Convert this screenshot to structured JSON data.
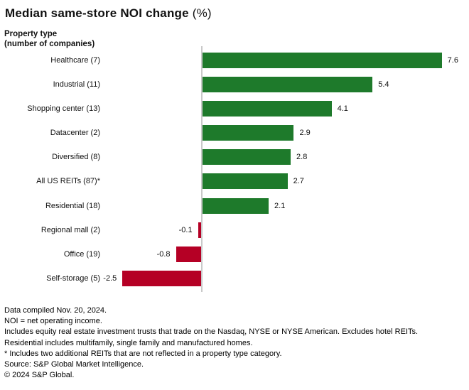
{
  "title": {
    "main": "Median same-store NOI change",
    "suffix": " (%)"
  },
  "axis_group_label": {
    "line1": "Property type",
    "line2": "(number of companies)"
  },
  "chart_data": {
    "type": "bar",
    "orientation": "horizontal",
    "title": "Median same-store NOI change (%)",
    "ylabel": "Property type (number of companies)",
    "xlabel": "",
    "categories": [
      "Healthcare (7)",
      "Industrial (11)",
      "Shopping center (13)",
      "Datacenter (2)",
      "Diversified (8)",
      "All US REITs (87)*",
      "Residential (18)",
      "Regional mall (2)",
      "Office (19)",
      "Self-storage (5)"
    ],
    "values": [
      7.6,
      5.4,
      4.1,
      2.9,
      2.8,
      2.7,
      2.1,
      -0.1,
      -0.8,
      -2.5
    ],
    "value_labels": [
      "7.6",
      "5.4",
      "4.1",
      "2.9",
      "2.8",
      "2.7",
      "2.1",
      "-0.1",
      "-0.8",
      "-2.5"
    ],
    "xlim": [
      -2.6,
      8.4
    ],
    "gridlines": false,
    "legend": false,
    "positive_color": "#1e7a2b",
    "negative_color": "#b50025",
    "axis_line_color": "#c9c9c9"
  },
  "footnotes": [
    "Data compiled Nov. 20, 2024.",
    "NOI = net operating income.",
    "Includes equity real estate investment trusts that trade on the Nasdaq, NYSE or NYSE American. Excludes hotel REITs.",
    "Residential includes multifamily, single family and manufactured homes.",
    "* Includes two additional REITs that are not reflected in a property type category.",
    "Source: S&P Global Market Intelligence.",
    "© 2024 S&P Global."
  ]
}
